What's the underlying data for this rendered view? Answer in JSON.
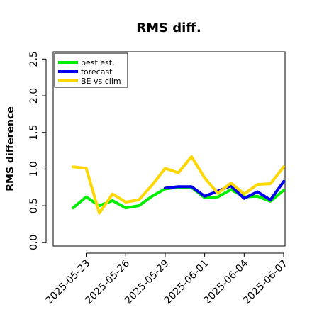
{
  "chart_data": {
    "type": "line",
    "title": "RMS diff.",
    "ylabel": "RMS difference",
    "xlabel": "",
    "ylim": [
      -0.05,
      2.6
    ],
    "yticks": [
      0.0,
      0.5,
      1.0,
      1.5,
      2.0,
      2.5
    ],
    "ytick_labels": [
      "0.0",
      "0.5",
      "1.0",
      "1.5",
      "2.0",
      "2.5"
    ],
    "xticks": [
      "2025-05-23",
      "2025-05-26",
      "2025-05-29",
      "2025-06-01",
      "2025-06-04",
      "2025-06-07"
    ],
    "xtick_label_colors": [
      "#000000",
      "#000000",
      "#228B22",
      "#000000",
      "#000000",
      "#000000"
    ],
    "x_start": "2025-05-22",
    "x_end": "2025-06-07",
    "grid": false,
    "legend_placement": "top-left",
    "series": [
      {
        "name": "best est.",
        "color": "#00ee00",
        "x": [
          "2025-05-22",
          "2025-05-23",
          "2025-05-24",
          "2025-05-25",
          "2025-05-26",
          "2025-05-27",
          "2025-05-28",
          "2025-05-29",
          "2025-05-30",
          "2025-05-31",
          "2025-06-01",
          "2025-06-02",
          "2025-06-03",
          "2025-06-04",
          "2025-06-05",
          "2025-06-06",
          "2025-06-07"
        ],
        "y": [
          0.47,
          0.62,
          0.5,
          0.57,
          0.47,
          0.5,
          0.63,
          0.73,
          0.75,
          0.75,
          0.61,
          0.62,
          0.72,
          0.62,
          0.63,
          0.56,
          0.71
        ]
      },
      {
        "name": "forecast",
        "color": "#0000ee",
        "x": [
          "2025-05-29",
          "2025-05-30",
          "2025-05-31",
          "2025-06-01",
          "2025-06-02",
          "2025-06-03",
          "2025-06-04",
          "2025-06-05",
          "2025-06-06",
          "2025-06-07"
        ],
        "y": [
          0.74,
          0.76,
          0.76,
          0.63,
          0.7,
          0.77,
          0.6,
          0.69,
          0.58,
          0.83
        ]
      },
      {
        "name": "BE vs clim",
        "color": "#ffd700",
        "x": [
          "2025-05-22",
          "2025-05-23",
          "2025-05-24",
          "2025-05-25",
          "2025-05-26",
          "2025-05-27",
          "2025-05-28",
          "2025-05-29",
          "2025-05-30",
          "2025-05-31",
          "2025-06-01",
          "2025-06-02",
          "2025-06-03",
          "2025-06-04",
          "2025-06-05",
          "2025-06-06",
          "2025-06-07"
        ],
        "y": [
          1.03,
          1.01,
          0.4,
          0.66,
          0.55,
          0.58,
          0.78,
          1.01,
          0.95,
          1.17,
          0.88,
          0.67,
          0.81,
          0.66,
          0.79,
          0.8,
          1.03
        ]
      }
    ]
  }
}
